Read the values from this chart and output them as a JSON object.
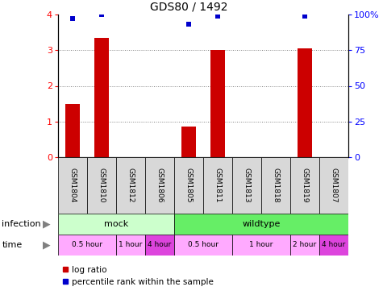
{
  "title": "GDS80 / 1492",
  "samples": [
    "GSM1804",
    "GSM1810",
    "GSM1812",
    "GSM1806",
    "GSM1805",
    "GSM1811",
    "GSM1813",
    "GSM1818",
    "GSM1819",
    "GSM1807"
  ],
  "log_ratio": [
    1.5,
    3.35,
    0.0,
    0.0,
    0.85,
    3.0,
    0.0,
    0.0,
    3.05,
    0.0
  ],
  "percentile": [
    97,
    100,
    null,
    null,
    93,
    99,
    null,
    null,
    99,
    null
  ],
  "infection_groups": [
    {
      "label": "mock",
      "start": 0,
      "end": 4,
      "color": "#ccffcc"
    },
    {
      "label": "wildtype",
      "start": 4,
      "end": 10,
      "color": "#66ee66"
    }
  ],
  "time_groups": [
    {
      "label": "0.5 hour",
      "start": 0,
      "end": 2,
      "color": "#ffaaff"
    },
    {
      "label": "1 hour",
      "start": 2,
      "end": 3,
      "color": "#ffaaff"
    },
    {
      "label": "4 hour",
      "start": 3,
      "end": 4,
      "color": "#dd44dd"
    },
    {
      "label": "0.5 hour",
      "start": 4,
      "end": 6,
      "color": "#ffaaff"
    },
    {
      "label": "1 hour",
      "start": 6,
      "end": 8,
      "color": "#ffaaff"
    },
    {
      "label": "2 hour",
      "start": 8,
      "end": 9,
      "color": "#ffaaff"
    },
    {
      "label": "4 hour",
      "start": 9,
      "end": 10,
      "color": "#dd44dd"
    }
  ],
  "ylim_left": [
    0,
    4
  ],
  "ylim_right": [
    0,
    100
  ],
  "yticks_left": [
    0,
    1,
    2,
    3,
    4
  ],
  "yticks_right": [
    0,
    25,
    50,
    75,
    100
  ],
  "bar_color": "#cc0000",
  "dot_color": "#0000cc",
  "bar_width": 0.5,
  "grid_lines": [
    1,
    2,
    3
  ],
  "label_color_infection": "gray",
  "label_color_time": "gray"
}
